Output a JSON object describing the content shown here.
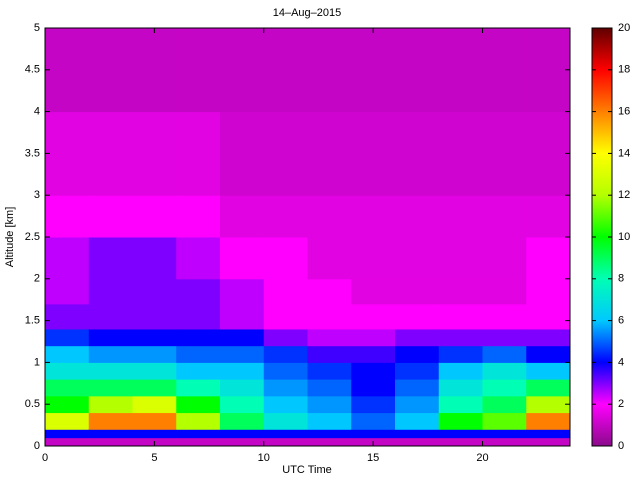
{
  "chart_data": {
    "type": "heatmap",
    "title": "14–Aug–2015",
    "xlabel": "UTC Time",
    "ylabel": "Altitude [km]",
    "xlim": [
      0,
      24
    ],
    "xticks": [
      0,
      5,
      10,
      15,
      20
    ],
    "ylim": [
      0,
      5
    ],
    "yticks": [
      0,
      0.5,
      1,
      1.5,
      2,
      2.5,
      3,
      3.5,
      4,
      4.5,
      5
    ],
    "zlim": [
      0,
      20
    ],
    "zticks": [
      0,
      2,
      4,
      6,
      8,
      10,
      12,
      14,
      16,
      18,
      20
    ],
    "colormap": [
      "#8a0a8a",
      "#ff00ff",
      "#0000ff",
      "#00c8ff",
      "#00ffb4",
      "#00ff00",
      "#b4ff00",
      "#ffff00",
      "#ff8000",
      "#ff0000",
      "#600000"
    ],
    "xbins": [
      0,
      2,
      4,
      6,
      8,
      10,
      12,
      14,
      16,
      18,
      20,
      22,
      24
    ],
    "ybins": [
      0,
      0.1,
      0.2,
      0.4,
      0.6,
      0.8,
      1.0,
      1.2,
      1.4,
      1.7,
      2.0,
      2.5,
      3.0,
      4.0,
      5.0
    ],
    "z": [
      [
        1,
        4,
        13,
        10,
        9,
        7,
        6,
        4.5,
        3,
        2.5,
        2.5,
        2,
        1.5,
        1
      ],
      [
        1,
        4,
        16,
        12,
        9,
        7,
        5.5,
        4,
        3,
        3,
        3,
        2,
        1.5,
        1
      ],
      [
        1,
        4,
        16,
        13,
        9,
        7,
        5.5,
        4,
        3,
        3,
        3,
        2,
        1.5,
        1
      ],
      [
        1,
        4,
        12,
        10,
        8,
        6,
        5,
        4,
        3,
        3,
        2.5,
        2,
        1.5,
        1
      ],
      [
        1,
        4,
        9,
        8,
        7,
        6,
        5,
        4,
        2.5,
        2.5,
        2,
        1.5,
        1.2,
        1
      ],
      [
        1,
        4,
        7,
        6,
        5.5,
        5,
        4.5,
        3,
        2,
        2,
        2,
        1.5,
        1.2,
        1
      ],
      [
        1,
        4,
        6,
        5.5,
        5,
        4.5,
        3.5,
        2.5,
        2,
        2,
        1.5,
        1.5,
        1.2,
        1
      ],
      [
        1,
        4,
        5,
        4.5,
        4,
        4,
        3.5,
        2.5,
        2,
        1.5,
        1.5,
        1.5,
        1.2,
        1
      ],
      [
        1,
        4,
        6,
        5.5,
        5,
        4.5,
        4,
        3,
        2,
        1.5,
        1.5,
        1.5,
        1.2,
        1
      ],
      [
        1,
        4,
        10,
        8,
        7,
        6,
        4.5,
        3,
        2,
        1.5,
        1.5,
        1.5,
        1.2,
        1
      ],
      [
        1,
        4,
        11,
        9,
        8,
        7,
        5,
        3,
        2,
        1.5,
        1.5,
        1.5,
        1.2,
        1
      ],
      [
        1,
        4,
        16,
        12,
        9,
        6,
        4,
        3,
        2,
        2,
        2,
        1.5,
        1.2,
        1
      ]
    ]
  }
}
